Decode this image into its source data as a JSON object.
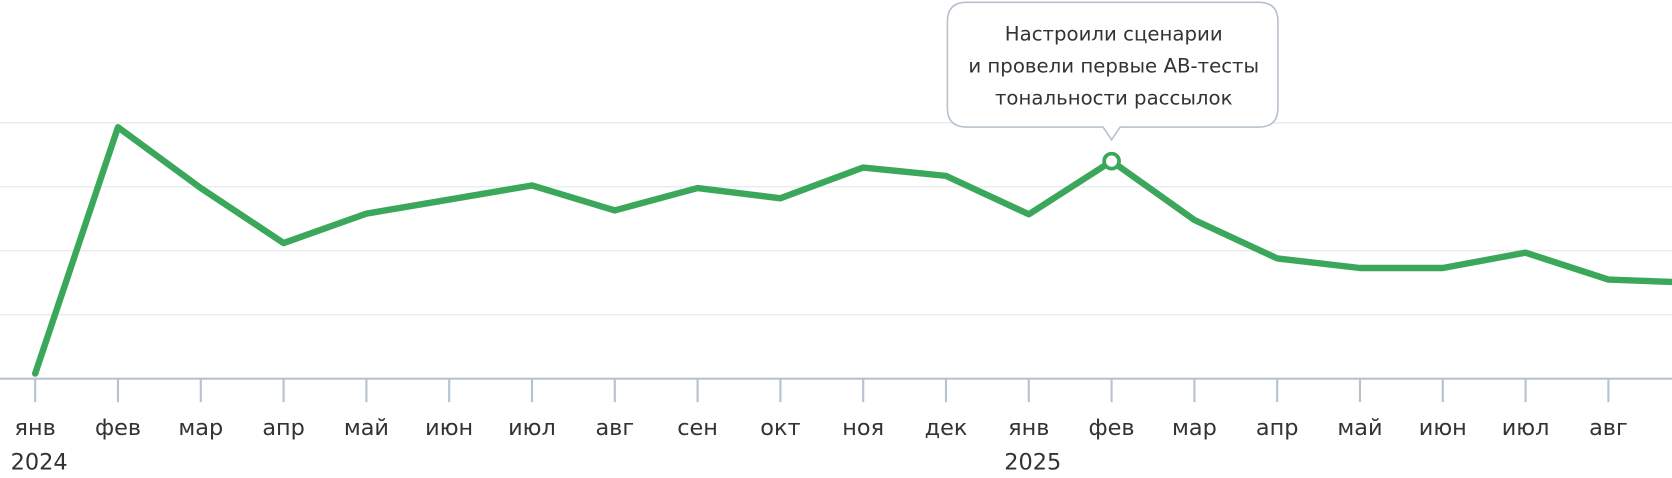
{
  "chart_data": {
    "type": "line",
    "categories": [
      "янв",
      "фев",
      "мар",
      "апр",
      "май",
      "июн",
      "июл",
      "авг",
      "сен",
      "окт",
      "ноя",
      "дек",
      "янв",
      "фев",
      "мар",
      "апр",
      "май",
      "июн",
      "июл",
      "авг",
      null
    ],
    "x_year_labels": [
      "2024",
      null,
      null,
      null,
      null,
      null,
      null,
      null,
      null,
      null,
      null,
      null,
      "2025",
      null,
      null,
      null,
      null,
      null,
      null,
      null,
      null
    ],
    "series": [
      {
        "color": "#3ba75a",
        "values": [
          0.08,
          3.93,
          2.98,
          2.12,
          2.58,
          2.8,
          3.02,
          2.63,
          2.98,
          2.82,
          3.3,
          3.17,
          2.57,
          3.4,
          2.48,
          1.88,
          1.73,
          1.73,
          1.97,
          1.55,
          1.5
        ],
        "annotations": [
          null,
          null,
          null,
          null,
          null,
          null,
          null,
          null,
          null,
          null,
          null,
          null,
          null,
          [
            "Настроили сценарии",
            "и провели первые AB-тесты",
            "тональности рассылок"
          ],
          null,
          null,
          null,
          null,
          null,
          null,
          null
        ]
      }
    ],
    "ylim": [
      0,
      5.9
    ],
    "yticks": [
      0,
      1,
      2,
      3,
      4
    ],
    "grid": true
  }
}
